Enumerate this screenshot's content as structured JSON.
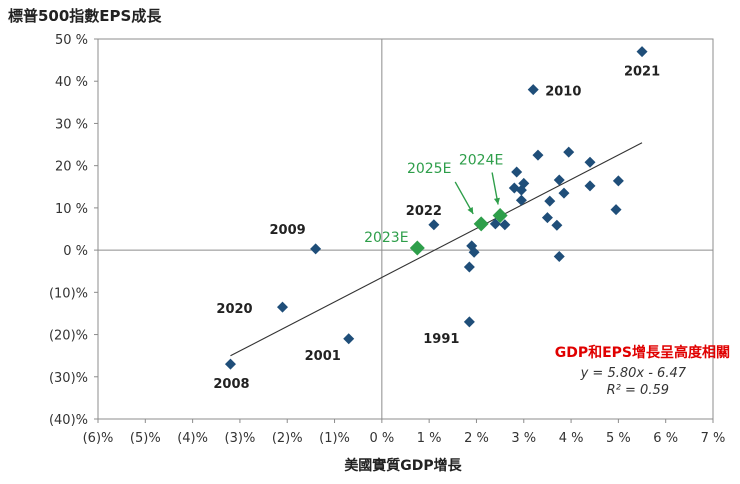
{
  "chart_data": {
    "type": "scatter",
    "title": "標普500指數EPS成長",
    "xlabel": "美國實質GDP增長",
    "ylabel": "標普500指數EPS成長",
    "xlim": [
      -6,
      7
    ],
    "ylim": [
      -40,
      50
    ],
    "x_ticks": [
      {
        "value": -6,
        "label": "(6)%"
      },
      {
        "value": -5,
        "label": "(5)%"
      },
      {
        "value": -4,
        "label": "(4)%"
      },
      {
        "value": -3,
        "label": "(3)%"
      },
      {
        "value": -2,
        "label": "(2)%"
      },
      {
        "value": -1,
        "label": "(1)%"
      },
      {
        "value": 0,
        "label": "0 %"
      },
      {
        "value": 1,
        "label": "1 %"
      },
      {
        "value": 2,
        "label": "2 %"
      },
      {
        "value": 3,
        "label": "3 %"
      },
      {
        "value": 4,
        "label": "4 %"
      },
      {
        "value": 5,
        "label": "5 %"
      },
      {
        "value": 6,
        "label": "6 %"
      },
      {
        "value": 7,
        "label": "7 %"
      }
    ],
    "y_ticks": [
      {
        "value": 50,
        "label": "50 %"
      },
      {
        "value": 40,
        "label": "40 %"
      },
      {
        "value": 30,
        "label": "30 %"
      },
      {
        "value": 20,
        "label": "20 %"
      },
      {
        "value": 10,
        "label": "10 %"
      },
      {
        "value": 0,
        "label": "0 %"
      },
      {
        "value": -10,
        "label": "(10)%"
      },
      {
        "value": -20,
        "label": "(20)%"
      },
      {
        "value": -30,
        "label": "(30)%"
      },
      {
        "value": -40,
        "label": "(40)%"
      }
    ],
    "historical_color": "#1f4e79",
    "estimate_color": "#2e9e4a",
    "annotation_color": "#e00000",
    "points": [
      {
        "x": 5.5,
        "y": 47,
        "label": "2021"
      },
      {
        "x": 3.2,
        "y": 38,
        "label": "2010"
      },
      {
        "x": 1.1,
        "y": 6,
        "label": "2022"
      },
      {
        "x": -1.4,
        "y": 0.3,
        "label": "2009"
      },
      {
        "x": -2.1,
        "y": -13.5,
        "label": "2020"
      },
      {
        "x": -0.7,
        "y": -21,
        "label": "2001"
      },
      {
        "x": -3.2,
        "y": -27,
        "label": "2008"
      },
      {
        "x": 1.85,
        "y": -17,
        "label": "1991"
      },
      {
        "x": 3.95,
        "y": 23.2
      },
      {
        "x": 3.3,
        "y": 22.5
      },
      {
        "x": 4.4,
        "y": 20.8
      },
      {
        "x": 2.85,
        "y": 18.5
      },
      {
        "x": 3.0,
        "y": 15.8
      },
      {
        "x": 3.75,
        "y": 16.6
      },
      {
        "x": 4.4,
        "y": 15.2
      },
      {
        "x": 5.0,
        "y": 16.4
      },
      {
        "x": 2.8,
        "y": 14.7
      },
      {
        "x": 2.95,
        "y": 14.2
      },
      {
        "x": 3.85,
        "y": 13.5
      },
      {
        "x": 3.55,
        "y": 11.6
      },
      {
        "x": 2.95,
        "y": 11.8
      },
      {
        "x": 4.95,
        "y": 9.6
      },
      {
        "x": 3.5,
        "y": 7.7
      },
      {
        "x": 3.7,
        "y": 5.9
      },
      {
        "x": 2.4,
        "y": 6.2
      },
      {
        "x": 2.6,
        "y": 6.0
      },
      {
        "x": 1.9,
        "y": 1.0
      },
      {
        "x": 1.95,
        "y": -0.5
      },
      {
        "x": 1.85,
        "y": -4.0
      },
      {
        "x": 3.75,
        "y": -1.5
      }
    ],
    "estimates": [
      {
        "x": 0.75,
        "y": 0.5,
        "label": "2023E"
      },
      {
        "x": 2.1,
        "y": 6.2,
        "label": "2025E"
      },
      {
        "x": 2.5,
        "y": 8.2,
        "label": "2024E"
      }
    ],
    "trendline": {
      "slope": 5.8,
      "intercept": -6.47,
      "x_range": [
        -3.2,
        5.5
      ]
    },
    "annotation": {
      "headline": "GDP和EPS增長呈高度相關",
      "equation": "y = 5.80x - 6.47",
      "r_squared": "R² = 0.59"
    }
  }
}
